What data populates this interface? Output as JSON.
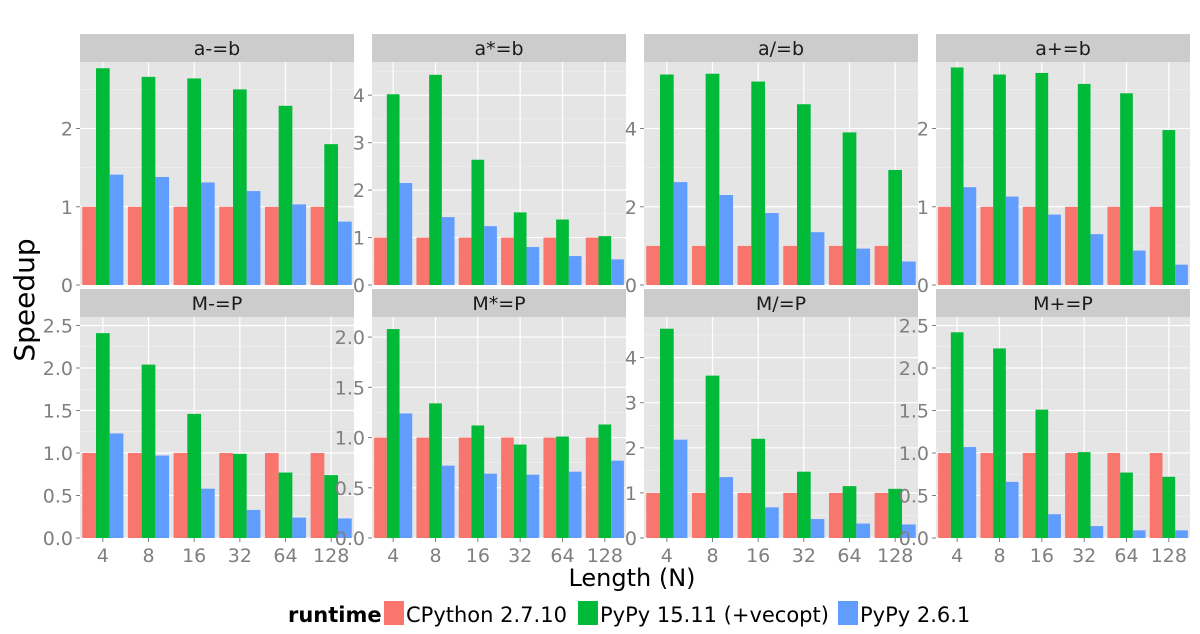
{
  "chart_data": {
    "type": "bar",
    "layout": "faceted-grid",
    "ylabel": "Speedup",
    "xlabel": "Length (N)",
    "categories": [
      "4",
      "8",
      "16",
      "32",
      "64",
      "128"
    ],
    "legend": {
      "title": "runtime",
      "position": "bottom",
      "items": [
        {
          "name": "CPython 2.7.10",
          "color": "#F8766D"
        },
        {
          "name": "PyPy 15.11 (+vecopt)",
          "color": "#00BA38"
        },
        {
          "name": "PyPy 2.6.1",
          "color": "#619CFF"
        }
      ]
    },
    "grid": true,
    "panels": [
      {
        "title": "a-=b",
        "ylim": [
          0,
          2.85
        ],
        "yticks": [
          "0",
          "1",
          "2"
        ],
        "series": [
          {
            "name": "CPython 2.7.10",
            "values": [
              1,
              1,
              1,
              1,
              1,
              1
            ]
          },
          {
            "name": "PyPy 15.11 (+vecopt)",
            "values": [
              2.77,
              2.66,
              2.64,
              2.5,
              2.29,
              1.8
            ]
          },
          {
            "name": "PyPy 2.6.1",
            "values": [
              1.41,
              1.38,
              1.31,
              1.2,
              1.03,
              0.81
            ]
          }
        ]
      },
      {
        "title": "a*=b",
        "ylim": [
          0,
          4.7
        ],
        "yticks": [
          "0",
          "1",
          "2",
          "3",
          "4"
        ],
        "series": [
          {
            "name": "CPython 2.7.10",
            "values": [
              1,
              1,
              1,
              1,
              1,
              1
            ]
          },
          {
            "name": "PyPy 15.11 (+vecopt)",
            "values": [
              4.02,
              4.43,
              2.64,
              1.53,
              1.38,
              1.03
            ]
          },
          {
            "name": "PyPy 2.6.1",
            "values": [
              2.15,
              1.43,
              1.24,
              0.8,
              0.61,
              0.54
            ]
          }
        ]
      },
      {
        "title": "a/=b",
        "ylim": [
          0,
          5.7
        ],
        "yticks": [
          "0",
          "2",
          "4"
        ],
        "series": [
          {
            "name": "CPython 2.7.10",
            "values": [
              1,
              1,
              1,
              1,
              1,
              1
            ]
          },
          {
            "name": "PyPy 15.11 (+vecopt)",
            "values": [
              5.38,
              5.4,
              5.2,
              4.62,
              3.9,
              2.94
            ]
          },
          {
            "name": "PyPy 2.6.1",
            "values": [
              2.63,
              2.3,
              1.84,
              1.35,
              0.93,
              0.6
            ]
          }
        ]
      },
      {
        "title": "a+=b",
        "ylim": [
          0,
          2.85
        ],
        "yticks": [
          "0",
          "1",
          "2"
        ],
        "series": [
          {
            "name": "CPython 2.7.10",
            "values": [
              1,
              1,
              1,
              1,
              1,
              1
            ]
          },
          {
            "name": "PyPy 15.11 (+vecopt)",
            "values": [
              2.78,
              2.69,
              2.71,
              2.57,
              2.45,
              1.98
            ]
          },
          {
            "name": "PyPy 2.6.1",
            "values": [
              1.25,
              1.13,
              0.9,
              0.65,
              0.44,
              0.26
            ]
          }
        ]
      },
      {
        "title": "M-=P",
        "ylim": [
          0,
          2.6
        ],
        "yticks": [
          "0.0",
          "0.5",
          "1.0",
          "1.5",
          "2.0",
          "2.5"
        ],
        "series": [
          {
            "name": "CPython 2.7.10",
            "values": [
              1,
              1,
              1,
              1,
              1,
              1
            ]
          },
          {
            "name": "PyPy 15.11 (+vecopt)",
            "values": [
              2.41,
              2.04,
              1.46,
              0.99,
              0.77,
              0.74
            ]
          },
          {
            "name": "PyPy 2.6.1",
            "values": [
              1.23,
              0.97,
              0.58,
              0.33,
              0.24,
              0.23
            ]
          }
        ]
      },
      {
        "title": "M*=P",
        "ylim": [
          0,
          2.2
        ],
        "yticks": [
          "0.0",
          "0.5",
          "1.0",
          "1.5",
          "2.0"
        ],
        "series": [
          {
            "name": "CPython 2.7.10",
            "values": [
              1,
              1,
              1,
              1,
              1,
              1
            ]
          },
          {
            "name": "PyPy 15.11 (+vecopt)",
            "values": [
              2.08,
              1.34,
              1.12,
              0.93,
              1.01,
              1.13
            ]
          },
          {
            "name": "PyPy 2.6.1",
            "values": [
              1.24,
              0.72,
              0.64,
              0.63,
              0.66,
              0.77
            ]
          }
        ]
      },
      {
        "title": "M/=P",
        "ylim": [
          0,
          4.9
        ],
        "yticks": [
          "0",
          "1",
          "2",
          "3",
          "4"
        ],
        "series": [
          {
            "name": "CPython 2.7.10",
            "values": [
              1,
              1,
              1,
              1,
              1,
              1
            ]
          },
          {
            "name": "PyPy 15.11 (+vecopt)",
            "values": [
              4.64,
              3.6,
              2.2,
              1.47,
              1.15,
              1.09
            ]
          },
          {
            "name": "PyPy 2.6.1",
            "values": [
              2.18,
              1.35,
              0.68,
              0.42,
              0.32,
              0.3
            ]
          }
        ]
      },
      {
        "title": "M+=P",
        "ylim": [
          0,
          2.6
        ],
        "yticks": [
          "0.0",
          "0.5",
          "1.0",
          "1.5",
          "2.0",
          "2.5"
        ],
        "series": [
          {
            "name": "CPython 2.7.10",
            "values": [
              1,
              1,
              1,
              1,
              1,
              1
            ]
          },
          {
            "name": "PyPy 15.11 (+vecopt)",
            "values": [
              2.42,
              2.23,
              1.51,
              1.01,
              0.77,
              0.72
            ]
          },
          {
            "name": "PyPy 2.6.1",
            "values": [
              1.07,
              0.66,
              0.28,
              0.14,
              0.09,
              0.09
            ]
          }
        ]
      }
    ]
  }
}
